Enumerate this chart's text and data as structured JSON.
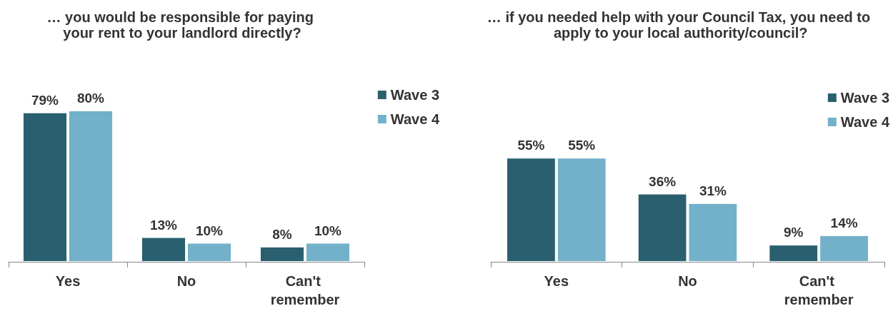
{
  "chart_data": [
    {
      "type": "bar",
      "title": "… you would be responsible for paying your rent to your landlord directly?",
      "categories": [
        "Yes",
        "No",
        "Can't remember"
      ],
      "series": [
        {
          "name": "Wave 3",
          "color": "#2a5f6f",
          "values": [
            79,
            13,
            8
          ],
          "value_labels": [
            "79%",
            "13%",
            "8%"
          ]
        },
        {
          "name": "Wave 4",
          "color": "#72b1c9",
          "values": [
            80,
            10,
            10
          ],
          "value_labels": [
            "80%",
            "10%",
            "10%"
          ]
        }
      ],
      "legend": "top right",
      "grid": false,
      "tick_labels": "x"
    },
    {
      "type": "bar",
      "title": "… if you needed help with your Council Tax, you need to apply to your local authority/council?",
      "categories": [
        "Yes",
        "No",
        "Can't remember"
      ],
      "series": [
        {
          "name": "Wave 3",
          "color": "#2a5f6f",
          "values": [
            55,
            36,
            9
          ],
          "value_labels": [
            "55%",
            "36%",
            "9%"
          ]
        },
        {
          "name": "Wave 4",
          "color": "#72b1c9",
          "values": [
            55,
            31,
            14
          ],
          "value_labels": [
            "55%",
            "31%",
            "14%"
          ]
        }
      ],
      "legend": "top right",
      "grid": false,
      "tick_labels": "x"
    }
  ]
}
